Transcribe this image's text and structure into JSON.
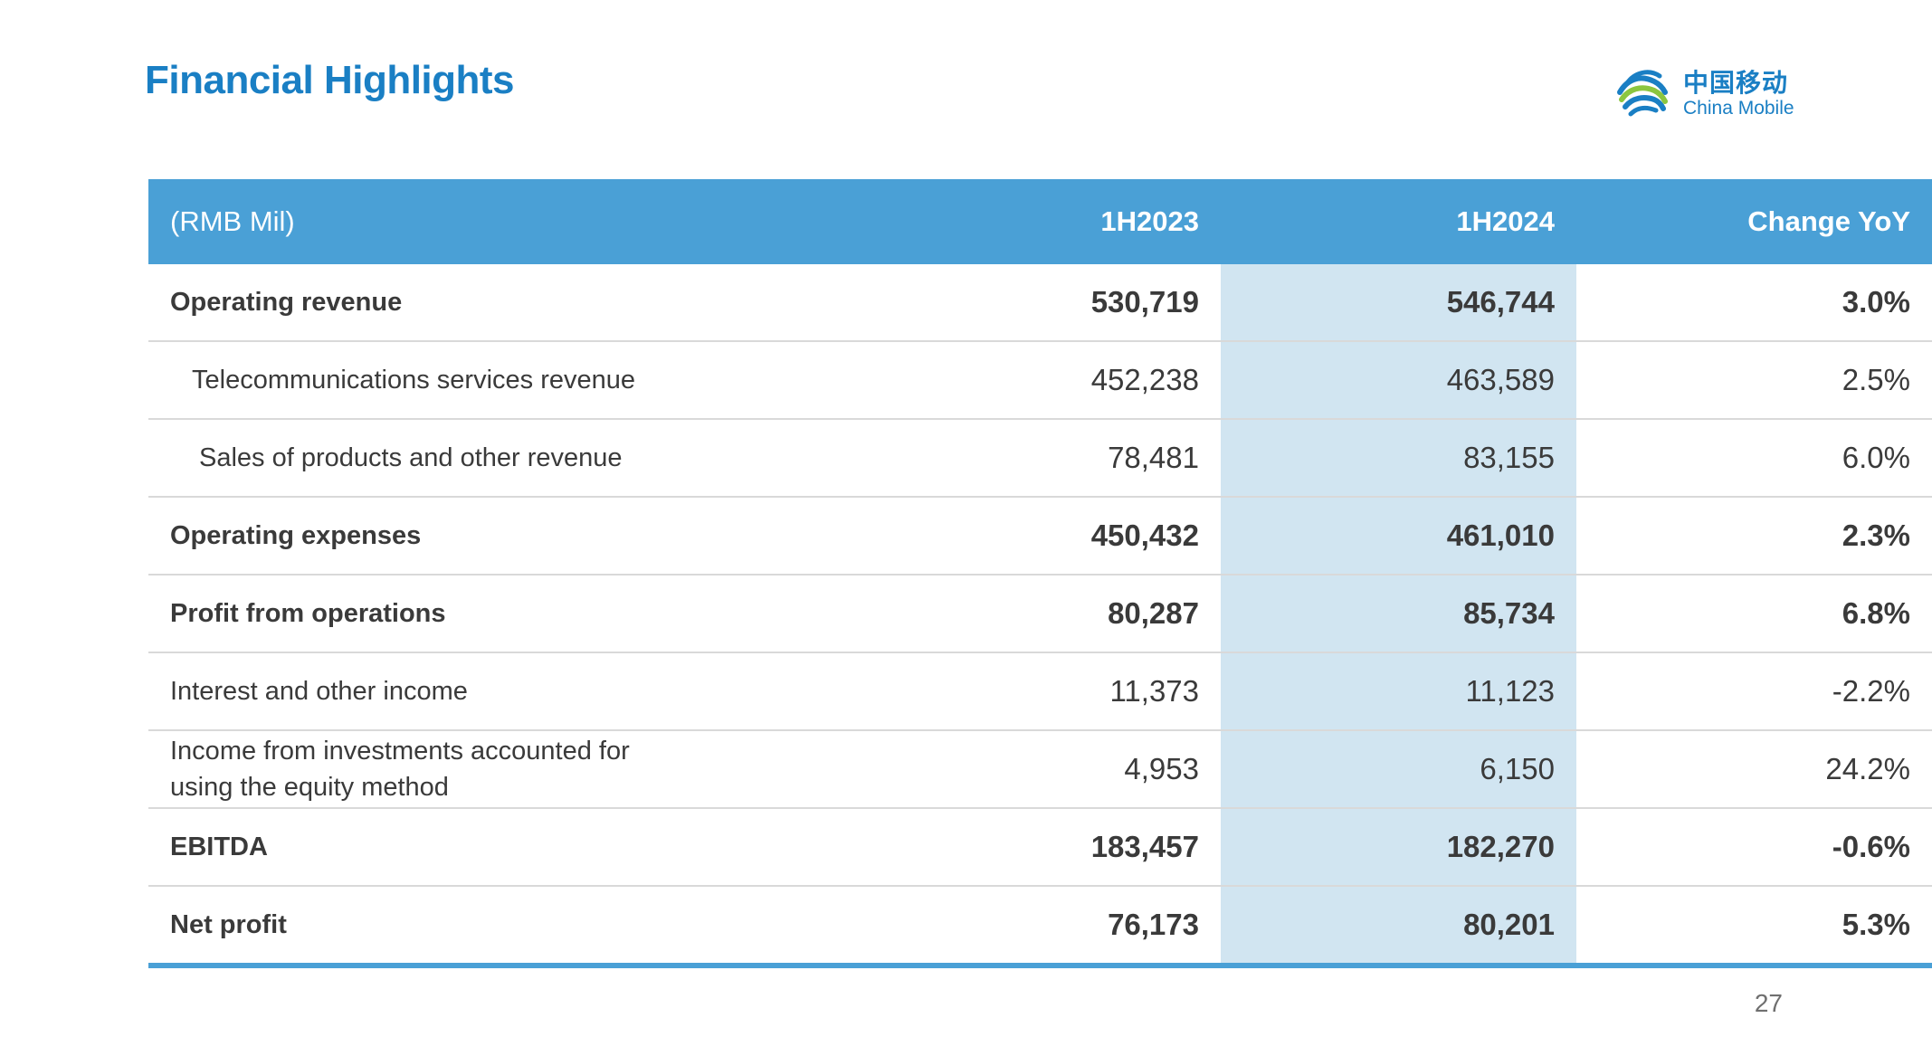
{
  "title": "Financial Highlights",
  "logo": {
    "chinese": "中国移动",
    "english": "China Mobile",
    "icon": "china-mobile-logo-icon",
    "brand_color": "#1a7fc4"
  },
  "colors": {
    "header_bg": "#4aa0d6",
    "highlight_column_bg": "#d1e5f1",
    "title": "#1a7fc4"
  },
  "table": {
    "headers": [
      "(RMB Mil)",
      "1H2023",
      "1H2024",
      "Change YoY"
    ],
    "rows": [
      {
        "label": "Operating revenue",
        "h2023": "530,719",
        "h2024": "546,744",
        "change": "3.0%"
      },
      {
        "label": "Telecommunications services revenue",
        "h2023": "452,238",
        "h2024": "463,589",
        "change": "2.5%"
      },
      {
        "label": "Sales of products and other revenue",
        "h2023": "78,481",
        "h2024": "83,155",
        "change": "6.0%"
      },
      {
        "label": "Operating expenses",
        "h2023": "450,432",
        "h2024": "461,010",
        "change": "2.3%"
      },
      {
        "label": "Profit from operations",
        "h2023": "80,287",
        "h2024": "85,734",
        "change": "6.8%"
      },
      {
        "label": "Interest and other income",
        "h2023": "11,373",
        "h2024": "11,123",
        "change": "-2.2%"
      },
      {
        "label_line1": "Income from investments accounted for",
        "label_line2": "using the equity method",
        "h2023": "4,953",
        "h2024": "6,150",
        "change": "24.2%"
      },
      {
        "label": "EBITDA",
        "h2023": "183,457",
        "h2024": "182,270",
        "change": "-0.6%"
      },
      {
        "label": "Net profit",
        "h2023": "76,173",
        "h2024": "80,201",
        "change": "5.3%"
      }
    ]
  },
  "page_number": "27"
}
